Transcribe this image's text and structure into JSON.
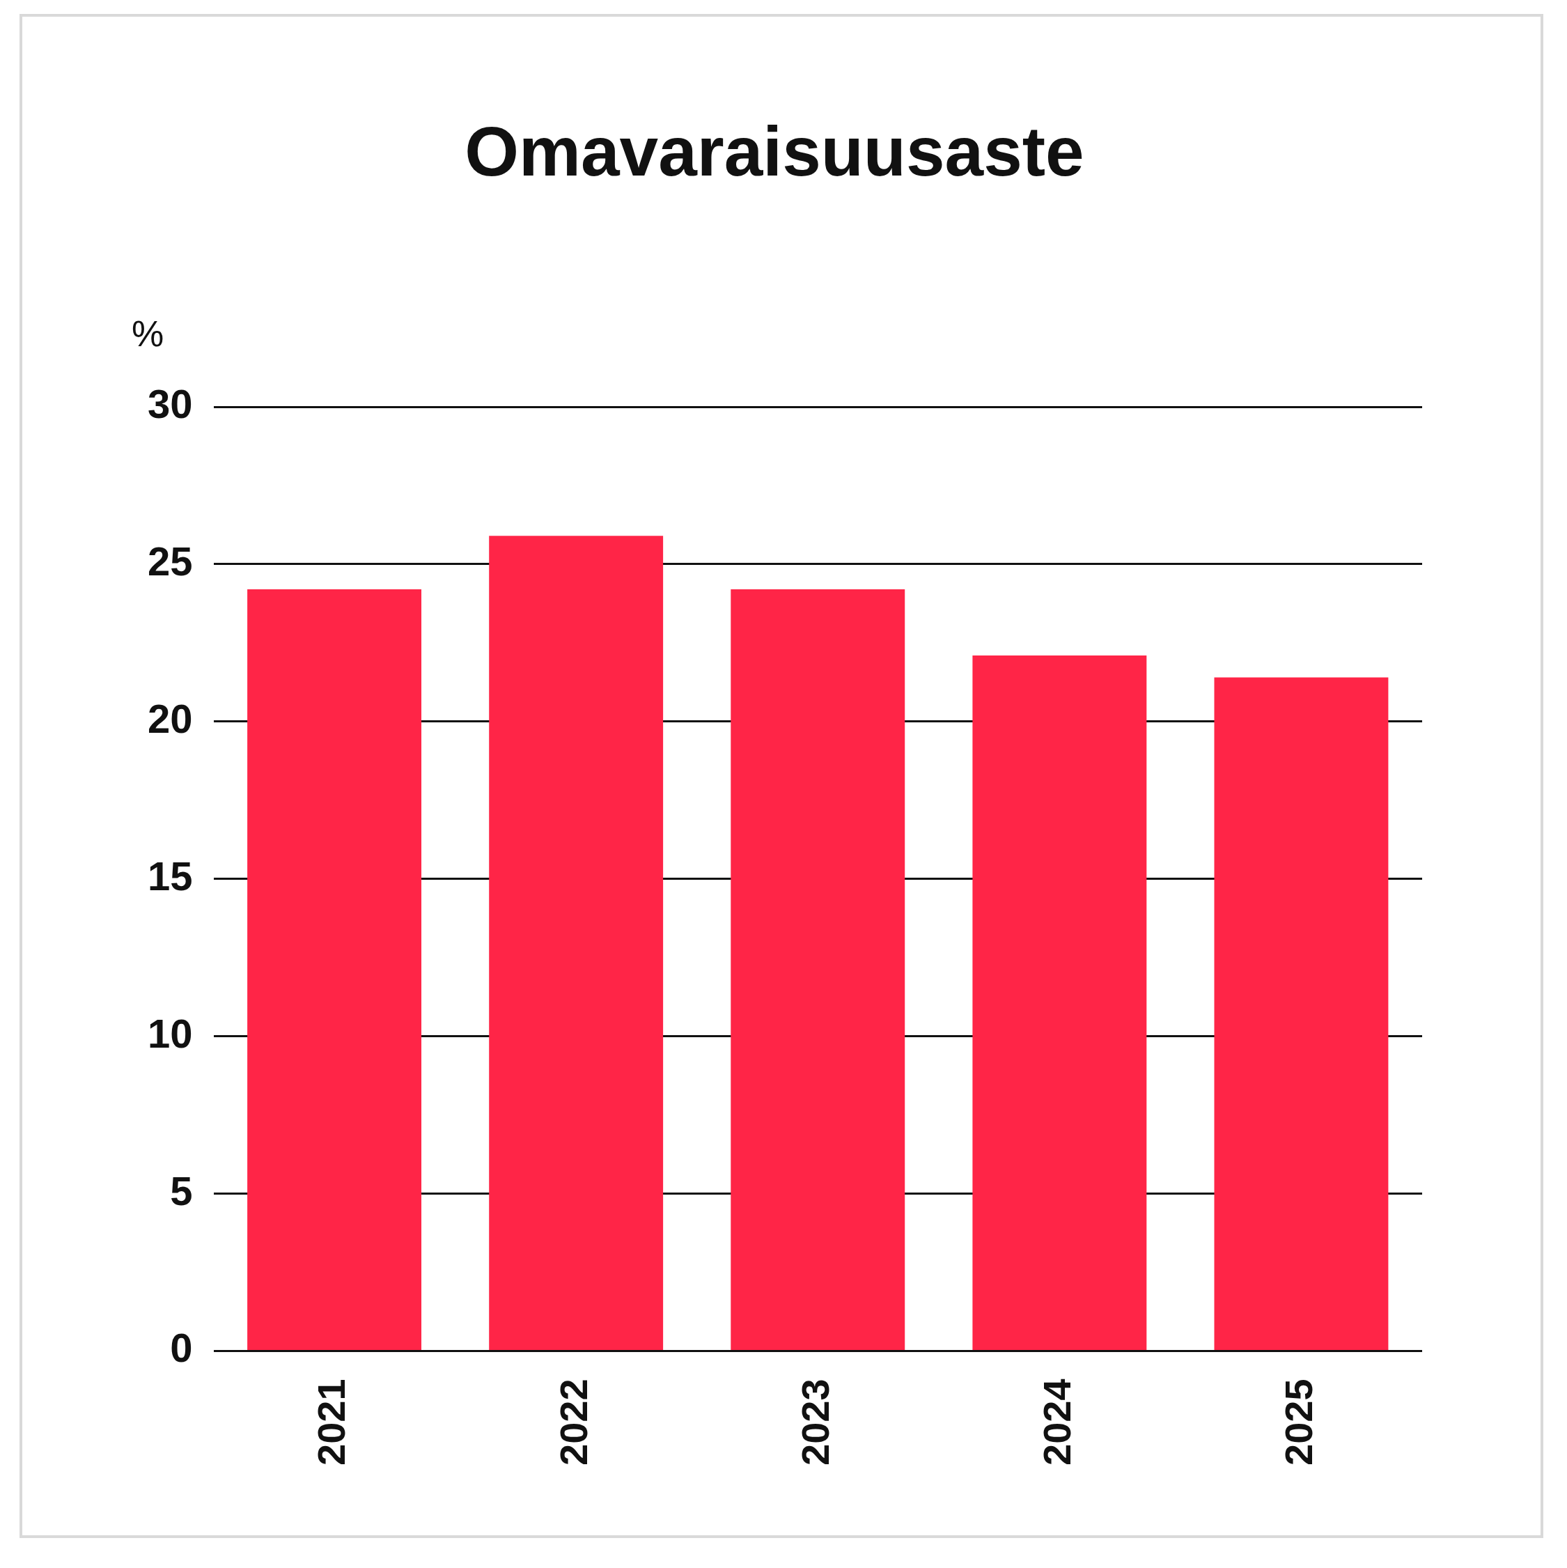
{
  "chart_data": {
    "type": "bar",
    "title": "Omavaraisuusaste",
    "ylabel": "%",
    "categories": [
      "2021",
      "2022",
      "2023",
      "2024",
      "2025"
    ],
    "values": [
      24.2,
      25.9,
      24.2,
      22.1,
      21.4
    ],
    "color": "#ff2547",
    "ylim": [
      0,
      30
    ],
    "yticks": [
      0,
      5,
      10,
      15,
      20,
      25,
      30
    ],
    "grid": "y",
    "legend": false
  }
}
